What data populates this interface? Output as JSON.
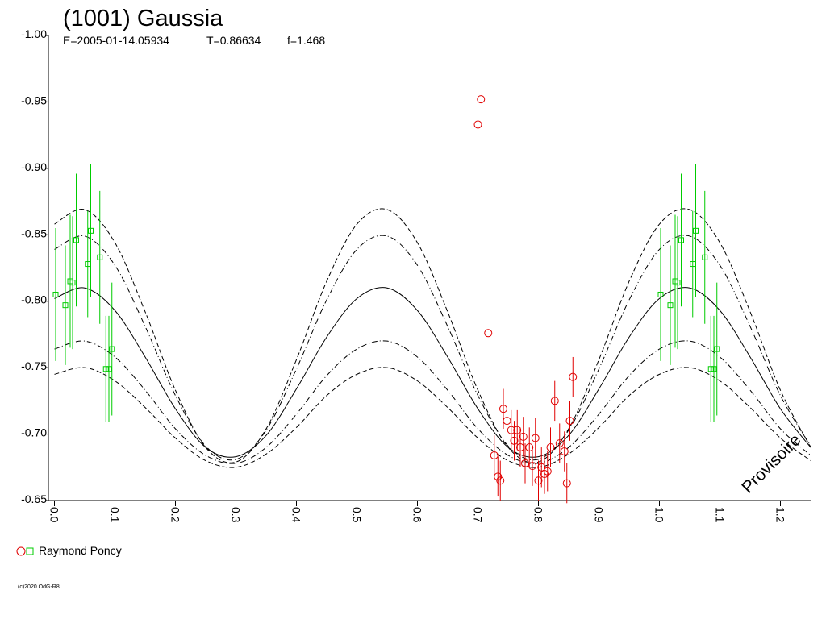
{
  "chart_data": {
    "type": "scatter",
    "title": "(1001) Gaussia",
    "subtitle": [
      "E=2005-01-14.05934",
      "T=0.86634",
      "f=1.468"
    ],
    "xlim": [
      -0.01,
      1.25
    ],
    "xticks": [
      {
        "value": 0,
        "label": "0.0"
      },
      0.1,
      0.2,
      0.3,
      0.4,
      0.5,
      0.6,
      0.7,
      0.8,
      0.9,
      {
        "value": 1,
        "label": "1.0"
      },
      1.1,
      1.2
    ],
    "ylim": [
      -0.65,
      -1.0
    ],
    "yticks": [
      {
        "value": -1,
        "label": "-1.00"
      },
      -0.95,
      {
        "value": -0.9,
        "label": "-0.90"
      },
      -0.85,
      {
        "value": -0.8,
        "label": "-0.80"
      },
      -0.75,
      {
        "value": -0.7,
        "label": "-0.70"
      },
      -0.65
    ],
    "curves": {
      "x": [
        0,
        0.05,
        0.1,
        0.15,
        0.2,
        0.25,
        0.3,
        0.35,
        0.4,
        0.45,
        0.5,
        0.55,
        0.6,
        0.65,
        0.7,
        0.75,
        0.8,
        0.85,
        0.9,
        0.95,
        1,
        1.05,
        1.1,
        1.15,
        1.2,
        1.25
      ],
      "lines": [
        {
          "style": "dashed",
          "color": "#000000",
          "values": [
            -0.858,
            -0.869,
            -0.844,
            -0.792,
            -0.733,
            -0.69,
            -0.679,
            -0.704,
            -0.756,
            -0.815,
            -0.858,
            -0.869,
            -0.844,
            -0.792,
            -0.733,
            -0.69,
            -0.679,
            -0.704,
            -0.756,
            -0.815,
            -0.858,
            -0.869,
            -0.844,
            -0.792,
            -0.733,
            -0.69
          ]
        },
        {
          "style": "dashdot",
          "color": "#000000",
          "values": [
            -0.839,
            -0.849,
            -0.827,
            -0.781,
            -0.729,
            -0.691,
            -0.681,
            -0.703,
            -0.749,
            -0.801,
            -0.839,
            -0.849,
            -0.827,
            -0.781,
            -0.729,
            -0.691,
            -0.681,
            -0.703,
            -0.749,
            -0.801,
            -0.839,
            -0.849,
            -0.827,
            -0.781,
            -0.729,
            -0.691
          ]
        },
        {
          "style": "solid",
          "color": "#000000",
          "values": [
            -0.802,
            -0.81,
            -0.793,
            -0.758,
            -0.719,
            -0.69,
            -0.683,
            -0.699,
            -0.734,
            -0.773,
            -0.802,
            -0.81,
            -0.793,
            -0.758,
            -0.719,
            -0.69,
            -0.683,
            -0.699,
            -0.734,
            -0.773,
            -0.802,
            -0.81,
            -0.793,
            -0.758,
            -0.719,
            -0.69
          ]
        },
        {
          "style": "dashdot",
          "color": "#000000",
          "values": [
            -0.764,
            -0.77,
            -0.758,
            -0.733,
            -0.704,
            -0.684,
            -0.678,
            -0.69,
            -0.715,
            -0.744,
            -0.764,
            -0.77,
            -0.758,
            -0.733,
            -0.704,
            -0.684,
            -0.678,
            -0.69,
            -0.715,
            -0.744,
            -0.764,
            -0.77,
            -0.758,
            -0.733,
            -0.704,
            -0.684
          ]
        },
        {
          "style": "dashed",
          "color": "#000000",
          "values": [
            -0.745,
            -0.75,
            -0.74,
            -0.72,
            -0.697,
            -0.68,
            -0.675,
            -0.685,
            -0.705,
            -0.729,
            -0.745,
            -0.75,
            -0.74,
            -0.72,
            -0.697,
            -0.68,
            -0.675,
            -0.685,
            -0.705,
            -0.729,
            -0.745,
            -0.75,
            -0.74,
            -0.72,
            -0.697,
            -0.68
          ]
        }
      ]
    },
    "series": [
      {
        "name": "Raymond Poncy",
        "sets": [
          {
            "marker": "circle",
            "color": "#e00000",
            "x": [
              0.7,
              0.705,
              0.717,
              0.727,
              0.733,
              0.737,
              0.742,
              0.748,
              0.755,
              0.76,
              0.765,
              0.77,
              0.775,
              0.778,
              0.785,
              0.79,
              0.795,
              0.8,
              0.805,
              0.81,
              0.815,
              0.82,
              0.827,
              0.835,
              0.843,
              0.847,
              0.852,
              0.857
            ],
            "y": [
              -0.933,
              -0.952,
              -0.776,
              -0.684,
              -0.668,
              -0.665,
              -0.719,
              -0.71,
              -0.703,
              -0.695,
              -0.703,
              -0.69,
              -0.698,
              -0.678,
              -0.69,
              -0.676,
              -0.697,
              -0.665,
              -0.675,
              -0.67,
              -0.672,
              -0.69,
              -0.725,
              -0.693,
              -0.687,
              -0.663,
              -0.71,
              -0.743
            ],
            "err": [
              null,
              null,
              null,
              0.015,
              0.015,
              0.015,
              0.015,
              0.015,
              0.015,
              0.015,
              0.015,
              0.015,
              0.015,
              0.015,
              0.015,
              0.015,
              0.015,
              0.015,
              0.015,
              0.015,
              0.015,
              0.015,
              0.015,
              0.015,
              0.015,
              0.015,
              0.015,
              0.015
            ]
          },
          {
            "marker": "square",
            "color": "#00cc00",
            "x": [
              0.002,
              0.018,
              0.026,
              0.03,
              0.036,
              0.055,
              0.06,
              0.075,
              0.085,
              0.09,
              0.095
            ],
            "y": [
              -0.805,
              -0.797,
              -0.815,
              -0.814,
              -0.846,
              -0.828,
              -0.853,
              -0.833,
              -0.749,
              -0.749,
              -0.764
            ],
            "err": [
              0.05,
              0.045,
              0.05,
              0.05,
              0.05,
              0.04,
              0.05,
              0.05,
              0.04,
              0.04,
              0.05
            ]
          },
          {
            "marker": "square",
            "color": "#00cc00",
            "x": [
              1.002,
              1.018,
              1.026,
              1.03,
              1.036,
              1.055,
              1.06,
              1.075,
              1.085,
              1.09,
              1.095
            ],
            "y": [
              -0.805,
              -0.797,
              -0.815,
              -0.814,
              -0.846,
              -0.828,
              -0.853,
              -0.833,
              -0.749,
              -0.749,
              -0.764
            ],
            "err": [
              0.05,
              0.045,
              0.05,
              0.05,
              0.05,
              0.04,
              0.05,
              0.05,
              0.04,
              0.04,
              0.05
            ]
          }
        ]
      }
    ],
    "watermark": "Provisoire",
    "footer": "(c)2020 OdG-R8"
  }
}
